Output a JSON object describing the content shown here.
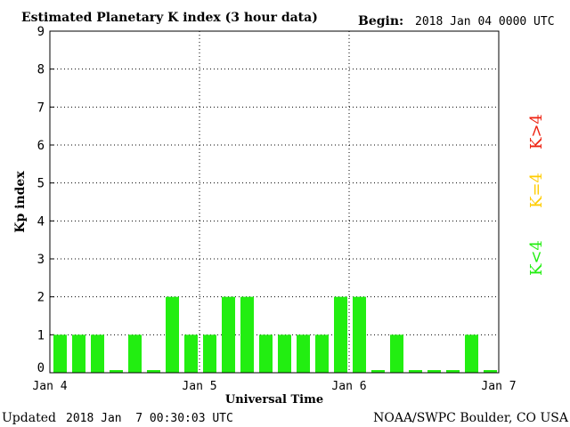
{
  "header": {
    "title": "Estimated Planetary K index (3 hour data)",
    "begin_label": "Begin:",
    "begin_value": "2018 Jan 04 0000 UTC"
  },
  "footer": {
    "updated_label": "Updated",
    "updated_value": "2018 Jan  7 00:30:03 UTC",
    "source": "NOAA/SWPC Boulder, CO USA"
  },
  "legend": {
    "greater": "K>4",
    "equal": "K=4",
    "less": "K<4"
  },
  "colors": {
    "bar": "#22ee11",
    "greater": "#ee2211",
    "equal": "#ffcc00",
    "less": "#22ee11",
    "axis": "#000000"
  },
  "chart_data": {
    "type": "bar",
    "title": "Estimated Planetary K index (3 hour data)",
    "xlabel": "Universal Time",
    "ylabel": "Kp index",
    "ylim": [
      0,
      9
    ],
    "yticks": [
      "0",
      "1",
      "2",
      "3",
      "4",
      "5",
      "6",
      "7",
      "8",
      "9"
    ],
    "xticks": [
      "Jan 4",
      "Jan 5",
      "Jan 6",
      "Jan 7"
    ],
    "grid": true,
    "categories": [
      "Jan 4 00",
      "Jan 4 03",
      "Jan 4 06",
      "Jan 4 09",
      "Jan 4 12",
      "Jan 4 15",
      "Jan 4 18",
      "Jan 4 21",
      "Jan 5 00",
      "Jan 5 03",
      "Jan 5 06",
      "Jan 5 09",
      "Jan 5 12",
      "Jan 5 15",
      "Jan 5 18",
      "Jan 5 21",
      "Jan 6 00",
      "Jan 6 03",
      "Jan 6 06",
      "Jan 6 09",
      "Jan 6 12",
      "Jan 6 15",
      "Jan 6 18",
      "Jan 6 21"
    ],
    "values": [
      1,
      1,
      1,
      0,
      1,
      0,
      2,
      1,
      1,
      2,
      2,
      1,
      1,
      1,
      1,
      2,
      2,
      0,
      1,
      0,
      0,
      0,
      1,
      0
    ]
  }
}
